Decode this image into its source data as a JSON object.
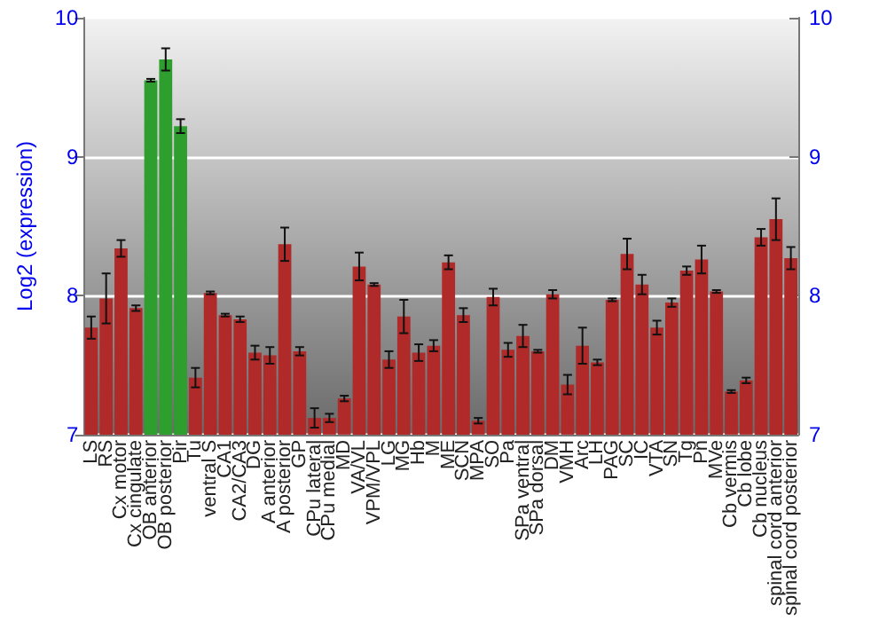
{
  "chart_data": {
    "type": "bar",
    "ylabel": "Log2 (expression)",
    "categories": [
      "LS",
      "RS",
      "Cx motor",
      "Cx cingulate",
      "OB anterior",
      "OB posterior",
      "Pir",
      "Tu",
      "ventral S",
      "CA1",
      "CA2/CA3",
      "DG",
      "A anterior",
      "A posterior",
      "GP",
      "CPu lateral",
      "CPu medial",
      "MD",
      "VA/VL",
      "VPM/VPL",
      "LG",
      "MG",
      "Hb",
      "M",
      "ME",
      "SCN",
      "MPA",
      "SO",
      "Pa",
      "SPa ventral",
      "SPa dorsal",
      "DM",
      "VMH",
      "Arc",
      "LH",
      "PAG",
      "SC",
      "IC",
      "VTA",
      "SN",
      "Tg",
      "Pn",
      "MVe",
      "Cb vermis",
      "Cb lobe",
      "Cb nucleus",
      "spinal cord anterior",
      "spinal cord posterior"
    ],
    "values": [
      7.77,
      7.98,
      8.34,
      7.91,
      9.55,
      9.7,
      9.22,
      7.41,
      8.02,
      7.86,
      7.83,
      7.59,
      7.57,
      8.37,
      7.6,
      7.12,
      7.12,
      7.26,
      8.21,
      8.08,
      7.54,
      7.85,
      7.59,
      7.64,
      8.24,
      7.86,
      7.1,
      7.99,
      7.61,
      7.71,
      7.6,
      8.01,
      7.36,
      7.64,
      7.52,
      7.97,
      8.3,
      8.08,
      7.77,
      7.95,
      8.18,
      8.26,
      8.03,
      7.31,
      7.39,
      8.42,
      8.55,
      8.27
    ],
    "errors": [
      0.08,
      0.18,
      0.06,
      0.02,
      0.01,
      0.08,
      0.05,
      0.07,
      0.01,
      0.01,
      0.02,
      0.05,
      0.06,
      0.12,
      0.03,
      0.07,
      0.03,
      0.02,
      0.1,
      0.01,
      0.06,
      0.12,
      0.06,
      0.04,
      0.05,
      0.05,
      0.02,
      0.06,
      0.05,
      0.08,
      0.01,
      0.03,
      0.07,
      0.13,
      0.02,
      0.01,
      0.11,
      0.07,
      0.05,
      0.03,
      0.03,
      0.1,
      0.01,
      0.01,
      0.02,
      0.06,
      0.15,
      0.08
    ],
    "colors": [
      "#b02a2a",
      "#b02a2a",
      "#b02a2a",
      "#b02a2a",
      "#2e9e2e",
      "#2e9e2e",
      "#2e9e2e",
      "#b02a2a",
      "#b02a2a",
      "#b02a2a",
      "#b02a2a",
      "#b02a2a",
      "#b02a2a",
      "#b02a2a",
      "#b02a2a",
      "#b02a2a",
      "#b02a2a",
      "#b02a2a",
      "#b02a2a",
      "#b02a2a",
      "#b02a2a",
      "#b02a2a",
      "#b02a2a",
      "#b02a2a",
      "#b02a2a",
      "#b02a2a",
      "#b02a2a",
      "#b02a2a",
      "#b02a2a",
      "#b02a2a",
      "#b02a2a",
      "#b02a2a",
      "#b02a2a",
      "#b02a2a",
      "#b02a2a",
      "#b02a2a",
      "#b02a2a",
      "#b02a2a",
      "#b02a2a",
      "#b02a2a",
      "#b02a2a",
      "#b02a2a",
      "#b02a2a",
      "#b02a2a",
      "#b02a2a",
      "#b02a2a",
      "#b02a2a",
      "#b02a2a"
    ],
    "ylim": [
      7,
      10
    ],
    "yticks": [
      7,
      8,
      9,
      10
    ],
    "y2lim": [
      7,
      10
    ],
    "y2ticks": [
      7,
      8,
      9,
      10
    ],
    "grid": "y"
  }
}
